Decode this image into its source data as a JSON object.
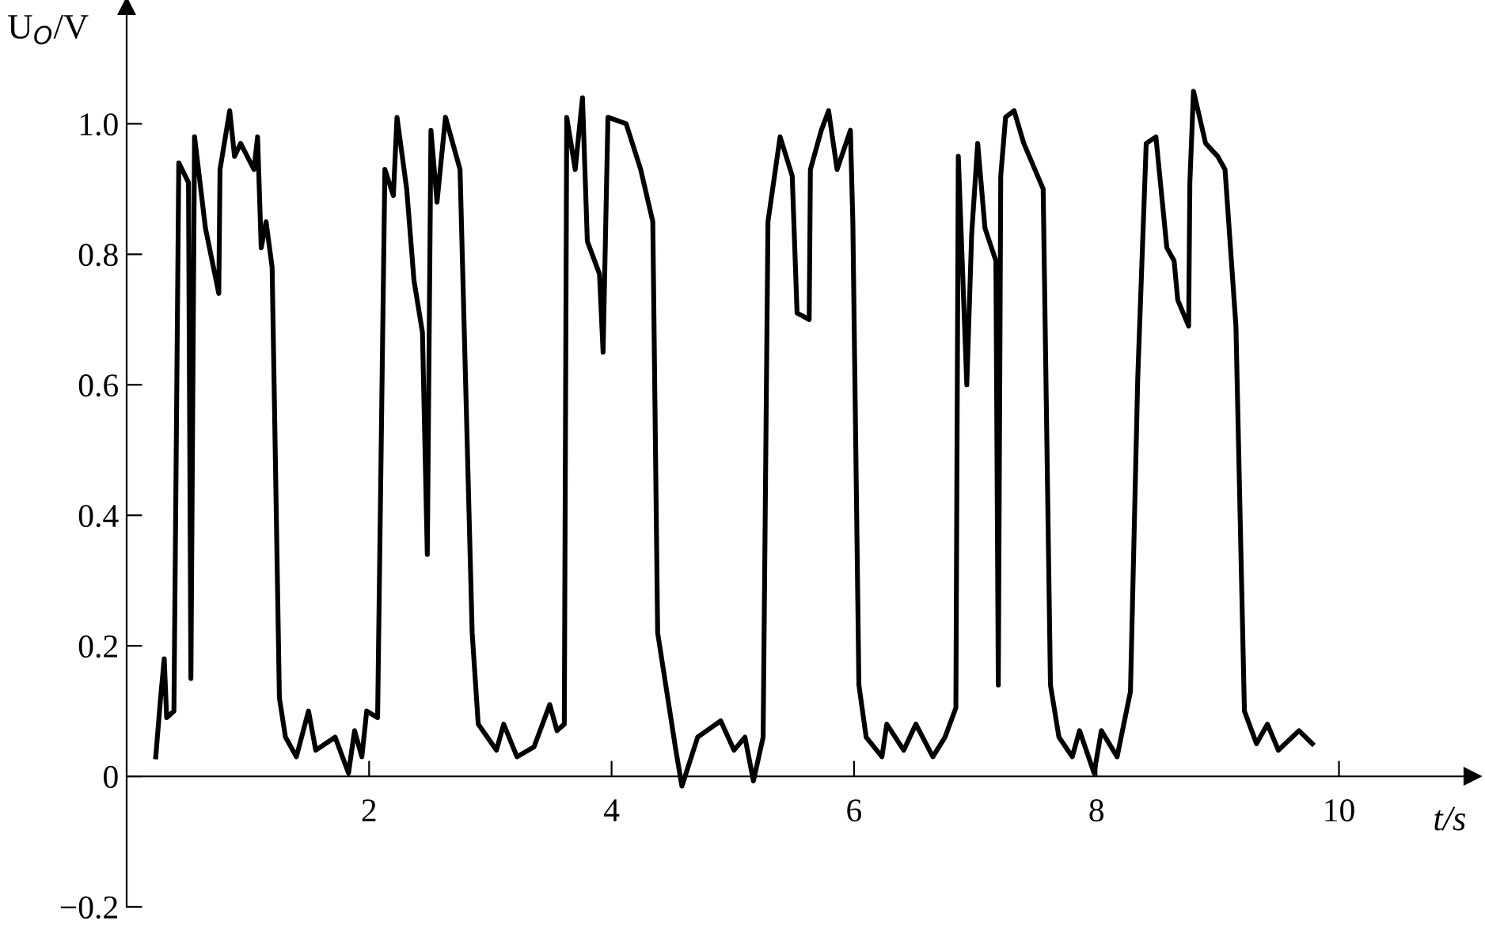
{
  "chart_data": {
    "type": "line",
    "xlabel": "t/s",
    "ylabel": "U$_{O}$/V",
    "xlim": [
      0,
      11.1
    ],
    "ylim": [
      -0.2,
      1.18
    ],
    "xticks": [
      2,
      4,
      6,
      8,
      10
    ],
    "yticks": [
      {
        "value": -0.2,
        "label": "−0.2"
      },
      0,
      0.2,
      0.4,
      0.6,
      0.8,
      {
        "value": 1.0,
        "label": "1.0"
      }
    ],
    "grid": false,
    "marker": "none",
    "line_style": "solid",
    "series": [
      {
        "color": "#000000",
        "x": [
          0.24,
          0.28,
          0.31,
          0.33,
          0.39,
          0.43,
          0.51,
          0.53,
          0.56,
          0.65,
          0.76,
          0.77,
          0.85,
          0.89,
          0.94,
          1.05,
          1.08,
          1.11,
          1.15,
          1.2,
          1.26,
          1.31,
          1.4,
          1.5,
          1.56,
          1.72,
          1.83,
          1.88,
          1.94,
          1.98,
          2.07,
          2.13,
          2.2,
          2.23,
          2.31,
          2.37,
          2.44,
          2.48,
          2.51,
          2.56,
          2.63,
          2.75,
          2.85,
          2.9,
          3.05,
          3.11,
          3.22,
          3.36,
          3.49,
          3.55,
          3.61,
          3.63,
          3.7,
          3.76,
          3.8,
          3.9,
          3.93,
          3.97,
          4.12,
          4.24,
          4.34,
          4.38,
          4.53,
          4.58,
          4.71,
          4.9,
          5.01,
          5.1,
          5.17,
          5.25,
          5.29,
          5.39,
          5.49,
          5.53,
          5.63,
          5.64,
          5.73,
          5.79,
          5.86,
          5.97,
          5.99,
          6.04,
          6.1,
          6.23,
          6.27,
          6.41,
          6.51,
          6.65,
          6.75,
          6.84,
          6.86,
          6.93,
          6.97,
          7.02,
          7.08,
          7.17,
          7.19,
          7.21,
          7.25,
          7.32,
          7.4,
          7.56,
          7.62,
          7.69,
          7.8,
          7.86,
          7.98,
          8.04,
          8.17,
          8.28,
          8.34,
          8.41,
          8.49,
          8.58,
          8.64,
          8.67,
          8.76,
          8.77,
          8.8,
          8.9,
          9.0,
          9.06,
          9.15,
          9.22,
          9.32,
          9.41,
          9.5,
          9.67,
          9.78
        ],
        "values": [
          0.03,
          0.12,
          0.18,
          0.09,
          0.1,
          0.94,
          0.91,
          0.15,
          0.98,
          0.84,
          0.74,
          0.93,
          1.02,
          0.95,
          0.97,
          0.93,
          0.98,
          0.81,
          0.85,
          0.78,
          0.12,
          0.06,
          0.03,
          0.1,
          0.04,
          0.06,
          0.005,
          0.07,
          0.03,
          0.1,
          0.09,
          0.93,
          0.89,
          1.01,
          0.9,
          0.76,
          0.68,
          0.34,
          0.99,
          0.88,
          1.01,
          0.93,
          0.22,
          0.08,
          0.04,
          0.08,
          0.03,
          0.045,
          0.11,
          0.07,
          0.08,
          1.01,
          0.93,
          1.04,
          0.82,
          0.77,
          0.65,
          1.01,
          1.0,
          0.93,
          0.85,
          0.22,
          0.04,
          -0.015,
          0.06,
          0.085,
          0.04,
          0.06,
          -0.007,
          0.06,
          0.85,
          0.98,
          0.92,
          0.71,
          0.7,
          0.93,
          0.99,
          1.02,
          0.93,
          0.99,
          0.85,
          0.14,
          0.06,
          0.03,
          0.08,
          0.04,
          0.08,
          0.03,
          0.06,
          0.105,
          0.95,
          0.6,
          0.83,
          0.97,
          0.84,
          0.79,
          0.14,
          0.92,
          1.01,
          1.02,
          0.97,
          0.9,
          0.14,
          0.06,
          0.03,
          0.07,
          0.005,
          0.07,
          0.03,
          0.13,
          0.61,
          0.97,
          0.98,
          0.81,
          0.79,
          0.73,
          0.69,
          0.91,
          1.05,
          0.97,
          0.95,
          0.93,
          0.69,
          0.1,
          0.05,
          0.08,
          0.04,
          0.07,
          0.05
        ]
      }
    ]
  }
}
